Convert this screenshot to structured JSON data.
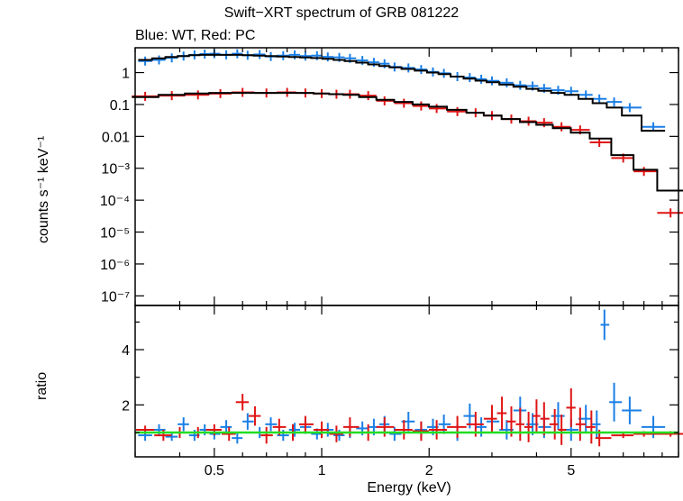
{
  "chart_data": [
    {
      "type": "scatter",
      "panel": "spectrum",
      "title": "Swift−XRT spectrum of GRB 081222",
      "subtitle": "Blue: WT, Red: PC",
      "xlabel": "Energy (keV)",
      "ylabel": "counts s⁻¹ keV⁻¹",
      "x_scale": "log",
      "y_scale": "log",
      "xlim": [
        0.3,
        10
      ],
      "ylim": [
        5e-08,
        6
      ],
      "y_ticks": [
        {
          "value": 1,
          "label": "1"
        },
        {
          "value": 0.1,
          "label": "0.1"
        },
        {
          "value": 0.01,
          "label": "0.01"
        },
        {
          "value": 0.001,
          "label": "10⁻³"
        },
        {
          "value": 0.0001,
          "label": "10⁻⁴"
        },
        {
          "value": 1e-05,
          "label": "10⁻⁵"
        },
        {
          "value": 1e-06,
          "label": "10⁻⁶"
        },
        {
          "value": 1e-07,
          "label": "10⁻⁷"
        }
      ],
      "series": [
        {
          "color": "#1a7fe6",
          "x": [
            0.32,
            0.35,
            0.38,
            0.41,
            0.44,
            0.47,
            0.5,
            0.54,
            0.58,
            0.62,
            0.67,
            0.72,
            0.78,
            0.84,
            0.9,
            0.97,
            1.04,
            1.12,
            1.2,
            1.3,
            1.4,
            1.5,
            1.6,
            1.75,
            1.9,
            2.05,
            2.2,
            2.4,
            2.6,
            2.8,
            3.0,
            3.3,
            3.6,
            3.9,
            4.2,
            4.6,
            5.0,
            5.5,
            6.0,
            6.6,
            7.3,
            8.5
          ],
          "y": [
            2.3,
            2.5,
            2.9,
            3.3,
            3.6,
            3.8,
            3.9,
            3.6,
            3.9,
            3.5,
            3.7,
            3.2,
            3.4,
            3.6,
            3.3,
            3.4,
            3.1,
            3.0,
            2.8,
            2.4,
            2.1,
            1.9,
            1.5,
            1.4,
            1.25,
            1.05,
            0.95,
            0.75,
            0.7,
            0.62,
            0.55,
            0.48,
            0.4,
            0.38,
            0.32,
            0.28,
            0.26,
            0.2,
            0.15,
            0.12,
            0.08,
            0.02
          ],
          "model_y": [
            2.5,
            2.8,
            3.1,
            3.3,
            3.5,
            3.6,
            3.6,
            3.6,
            3.6,
            3.5,
            3.4,
            3.3,
            3.2,
            3.1,
            3.0,
            2.85,
            2.7,
            2.5,
            2.3,
            2.05,
            1.8,
            1.6,
            1.45,
            1.3,
            1.15,
            1.0,
            0.9,
            0.75,
            0.65,
            0.56,
            0.5,
            0.42,
            0.36,
            0.31,
            0.27,
            0.23,
            0.2,
            0.15,
            0.11,
            0.08,
            0.045,
            0.015
          ]
        },
        {
          "color": "#e01414",
          "x": [
            0.32,
            0.38,
            0.45,
            0.52,
            0.6,
            0.7,
            0.8,
            0.9,
            1.0,
            1.1,
            1.2,
            1.35,
            1.5,
            1.7,
            1.9,
            2.1,
            2.4,
            2.7,
            3.0,
            3.4,
            3.8,
            4.2,
            4.7,
            5.3,
            6.0,
            7.0,
            8.0,
            9.5
          ],
          "y": [
            0.18,
            0.19,
            0.2,
            0.22,
            0.24,
            0.23,
            0.24,
            0.23,
            0.22,
            0.21,
            0.21,
            0.19,
            0.13,
            0.11,
            0.09,
            0.075,
            0.06,
            0.055,
            0.045,
            0.035,
            0.03,
            0.027,
            0.02,
            0.016,
            0.0065,
            0.0021,
            0.0008,
            4e-05
          ],
          "model_y": [
            0.17,
            0.2,
            0.22,
            0.23,
            0.23,
            0.23,
            0.23,
            0.23,
            0.22,
            0.21,
            0.2,
            0.17,
            0.14,
            0.12,
            0.1,
            0.085,
            0.068,
            0.055,
            0.045,
            0.035,
            0.028,
            0.023,
            0.018,
            0.013,
            0.0085,
            0.0026,
            0.0009,
            0.0002
          ]
        }
      ]
    },
    {
      "type": "scatter",
      "panel": "ratio",
      "xlabel": "Energy (keV)",
      "ylabel": "ratio",
      "x_scale": "log",
      "xlim": [
        0.3,
        10
      ],
      "ylim": [
        0.12,
        5.6
      ],
      "x_ticks": [
        {
          "value": 0.5,
          "label": "0.5"
        },
        {
          "value": 1,
          "label": "1"
        },
        {
          "value": 2,
          "label": "2"
        },
        {
          "value": 5,
          "label": "5"
        }
      ],
      "y_ticks": [
        {
          "value": 2,
          "label": "2"
        },
        {
          "value": 4,
          "label": "4"
        }
      ],
      "reference_line": {
        "value": 1,
        "color": "#22dd22"
      },
      "series": [
        {
          "color": "#1a7fe6",
          "x": [
            0.32,
            0.35,
            0.38,
            0.41,
            0.44,
            0.47,
            0.5,
            0.54,
            0.58,
            0.62,
            0.67,
            0.72,
            0.78,
            0.84,
            0.9,
            0.97,
            1.04,
            1.12,
            1.2,
            1.3,
            1.4,
            1.5,
            1.6,
            1.75,
            1.9,
            2.05,
            2.2,
            2.4,
            2.6,
            2.8,
            3.0,
            3.3,
            3.6,
            3.9,
            4.2,
            4.6,
            5.0,
            5.5,
            5.9,
            6.2,
            6.6,
            7.3,
            8.5
          ],
          "y": [
            0.9,
            1.1,
            0.85,
            1.3,
            0.9,
            1.1,
            0.95,
            1.2,
            0.8,
            1.4,
            1.0,
            1.3,
            0.9,
            1.1,
            1.2,
            0.95,
            1.1,
            0.9,
            1.0,
            1.15,
            1.2,
            1.3,
            0.95,
            1.4,
            1.1,
            1.2,
            1.3,
            1.0,
            1.6,
            1.2,
            1.4,
            1.1,
            1.8,
            1.3,
            1.2,
            1.6,
            1.1,
            1.5,
            1.3,
            4.9,
            2.1,
            1.8,
            1.2
          ],
          "err": [
            0.2,
            0.2,
            0.15,
            0.25,
            0.2,
            0.2,
            0.2,
            0.25,
            0.2,
            0.3,
            0.2,
            0.25,
            0.2,
            0.25,
            0.25,
            0.2,
            0.25,
            0.2,
            0.2,
            0.25,
            0.3,
            0.3,
            0.25,
            0.35,
            0.3,
            0.3,
            0.35,
            0.3,
            0.45,
            0.35,
            0.4,
            0.35,
            0.5,
            0.4,
            0.4,
            0.5,
            0.4,
            0.5,
            0.5,
            0.55,
            0.7,
            0.5,
            0.4
          ]
        },
        {
          "color": "#e01414",
          "x": [
            0.32,
            0.36,
            0.4,
            0.45,
            0.5,
            0.55,
            0.6,
            0.65,
            0.7,
            0.76,
            0.83,
            0.9,
            1.0,
            1.1,
            1.2,
            1.35,
            1.5,
            1.7,
            1.9,
            2.1,
            2.4,
            2.7,
            3.0,
            3.2,
            3.4,
            3.6,
            3.8,
            4.0,
            4.2,
            4.5,
            4.7,
            5.0,
            5.3,
            5.7,
            6.0,
            7.0,
            8.0,
            9.5
          ],
          "y": [
            1.1,
            0.9,
            1.0,
            1.0,
            1.1,
            0.95,
            2.1,
            1.6,
            0.9,
            1.2,
            1.0,
            1.3,
            1.1,
            0.95,
            1.2,
            1.0,
            1.2,
            1.1,
            1.05,
            1.1,
            1.2,
            1.3,
            1.5,
            1.7,
            1.4,
            1.3,
            1.2,
            1.6,
            1.5,
            1.3,
            1.1,
            1.9,
            1.3,
            1.2,
            0.8,
            0.9,
            0.95,
            0.95
          ],
          "err": [
            0.15,
            0.2,
            0.2,
            0.2,
            0.2,
            0.25,
            0.3,
            0.35,
            0.3,
            0.3,
            0.3,
            0.3,
            0.3,
            0.3,
            0.35,
            0.3,
            0.35,
            0.35,
            0.35,
            0.35,
            0.4,
            0.45,
            0.5,
            0.6,
            0.55,
            0.6,
            0.55,
            0.6,
            0.6,
            0.55,
            0.55,
            0.7,
            0.6,
            0.6,
            0.3,
            0.1,
            0.1,
            0.1
          ]
        }
      ]
    }
  ]
}
